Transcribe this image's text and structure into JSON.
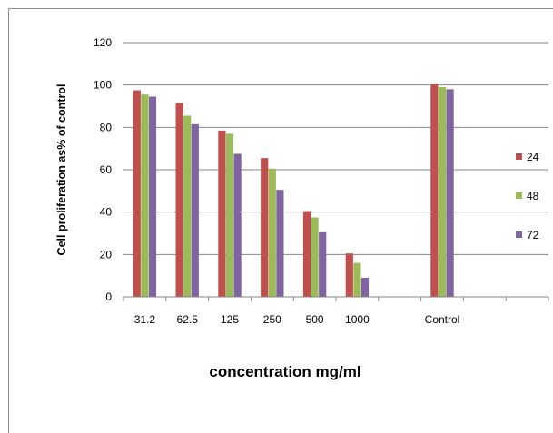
{
  "chart_data": {
    "type": "bar",
    "title": "",
    "xlabel": "concentration mg/ml",
    "ylabel": "Cell proliferation as% of control",
    "ylim": [
      0,
      120
    ],
    "yticks": [
      "0",
      "20",
      "40",
      "60",
      "80",
      "100",
      "120"
    ],
    "categories": [
      "31.2",
      "62.5",
      "125",
      "250",
      "500",
      "1000",
      "",
      "Control",
      "",
      ""
    ],
    "series": [
      {
        "name": "24",
        "color": "#c0504d",
        "values": [
          97.5,
          91.5,
          78.5,
          65.5,
          40.5,
          20.5,
          null,
          100.5,
          null,
          null
        ]
      },
      {
        "name": "48",
        "color": "#9bbb59",
        "values": [
          95.5,
          85.5,
          77,
          60.5,
          37.5,
          16,
          null,
          99,
          null,
          null
        ]
      },
      {
        "name": "72",
        "color": "#8064a2",
        "values": [
          94.5,
          81.5,
          67.5,
          50.5,
          30.5,
          9,
          null,
          98,
          null,
          null
        ]
      }
    ],
    "grid": true,
    "legend_position": "right"
  }
}
